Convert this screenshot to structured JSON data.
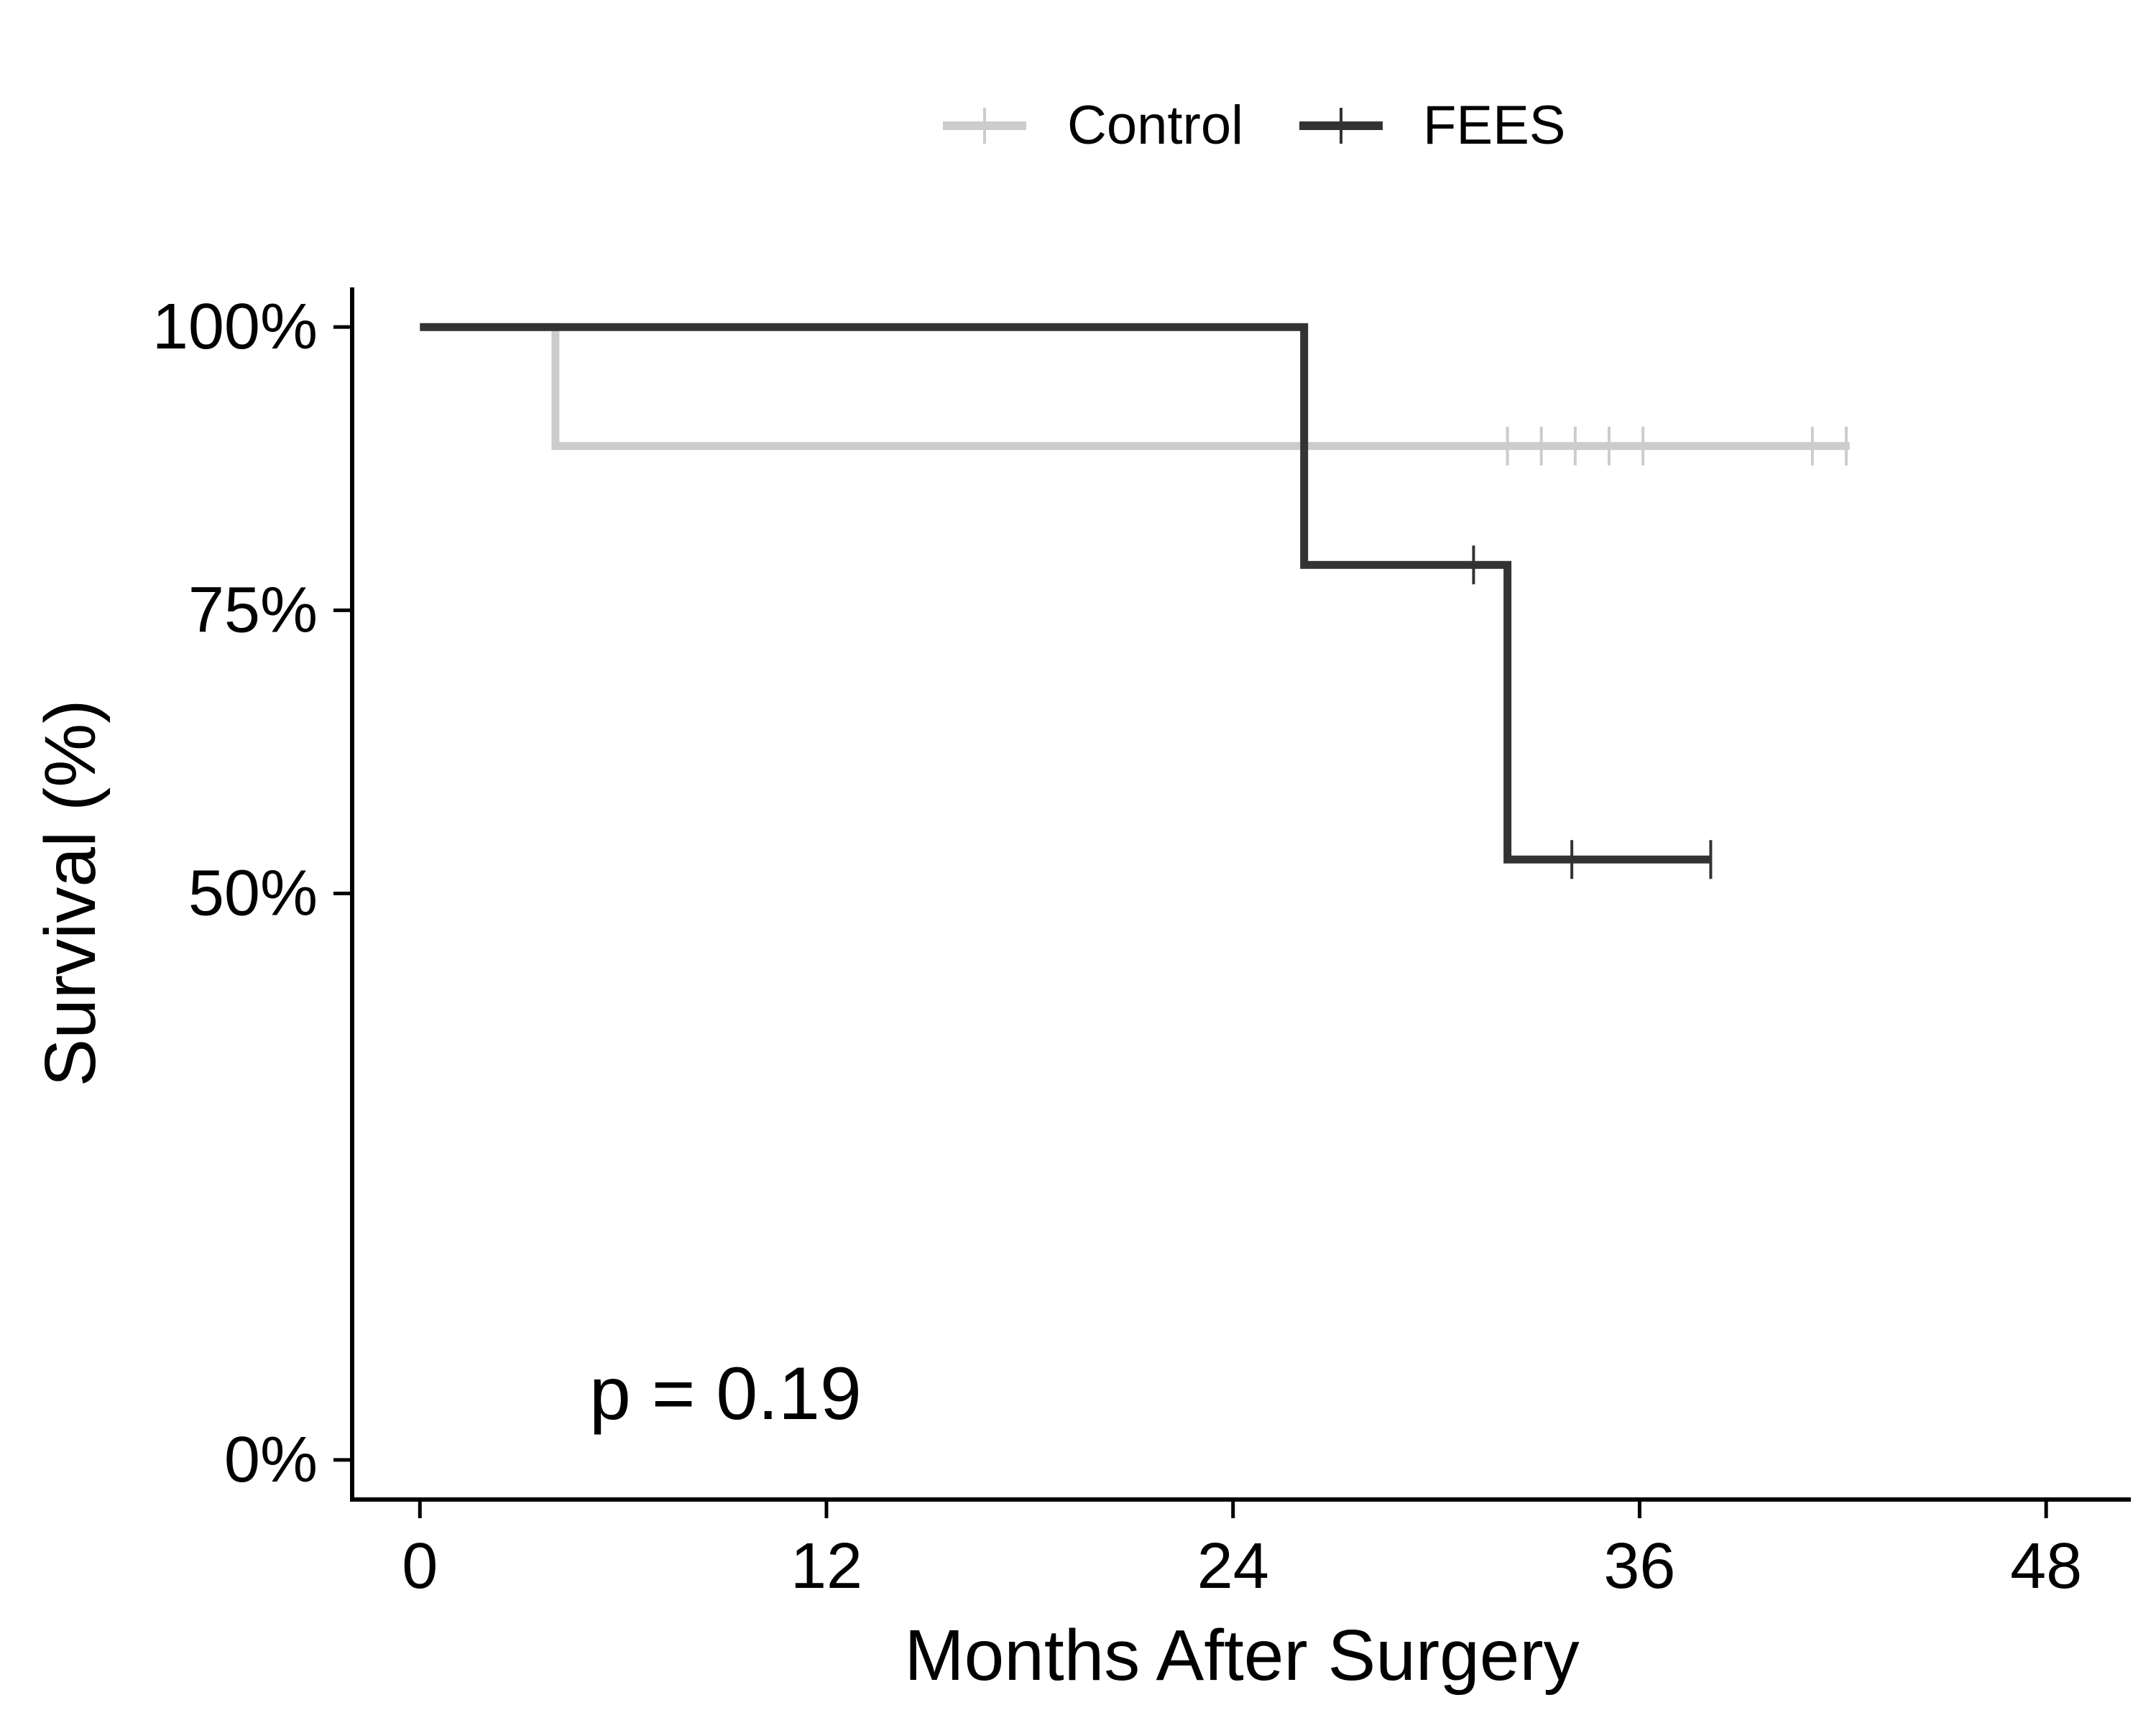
{
  "chart_data": {
    "type": "line",
    "subtype": "kaplan-meier step",
    "xlabel": "Months After Surgery",
    "ylabel": "Survival (%)",
    "xlim": [
      -2,
      50.5
    ],
    "ylim": [
      -0.035,
      1.035
    ],
    "x_ticks": [
      0,
      12,
      24,
      36,
      48
    ],
    "x_tick_labels": [
      "0",
      "12",
      "24",
      "36",
      "48"
    ],
    "y_ticks": [
      1.0,
      0.75,
      0.5,
      0.0
    ],
    "y_tick_labels": [
      "100%",
      "75%",
      "50%",
      "0%"
    ],
    "legend_position": "top",
    "annotation": "p = 0.19",
    "annotation_at": {
      "x": 5,
      "y": 0.06
    },
    "series": [
      {
        "name": "Control",
        "color": "#cccccc",
        "steps": [
          [
            0,
            1.0
          ],
          [
            4,
            1.0
          ],
          [
            4,
            0.895
          ],
          [
            42.2,
            0.895
          ]
        ],
        "censor_times": [
          32.1,
          33.1,
          34.1,
          35.1,
          36.1,
          41.1,
          42.1
        ]
      },
      {
        "name": "FEES",
        "color": "#333333",
        "steps": [
          [
            0,
            1.0
          ],
          [
            26.1,
            1.0
          ],
          [
            26.1,
            0.79
          ],
          [
            32.1,
            0.79
          ],
          [
            32.1,
            0.53
          ],
          [
            38.1,
            0.53
          ]
        ],
        "censor_times": [
          31.1,
          34.0,
          38.1
        ]
      }
    ]
  }
}
